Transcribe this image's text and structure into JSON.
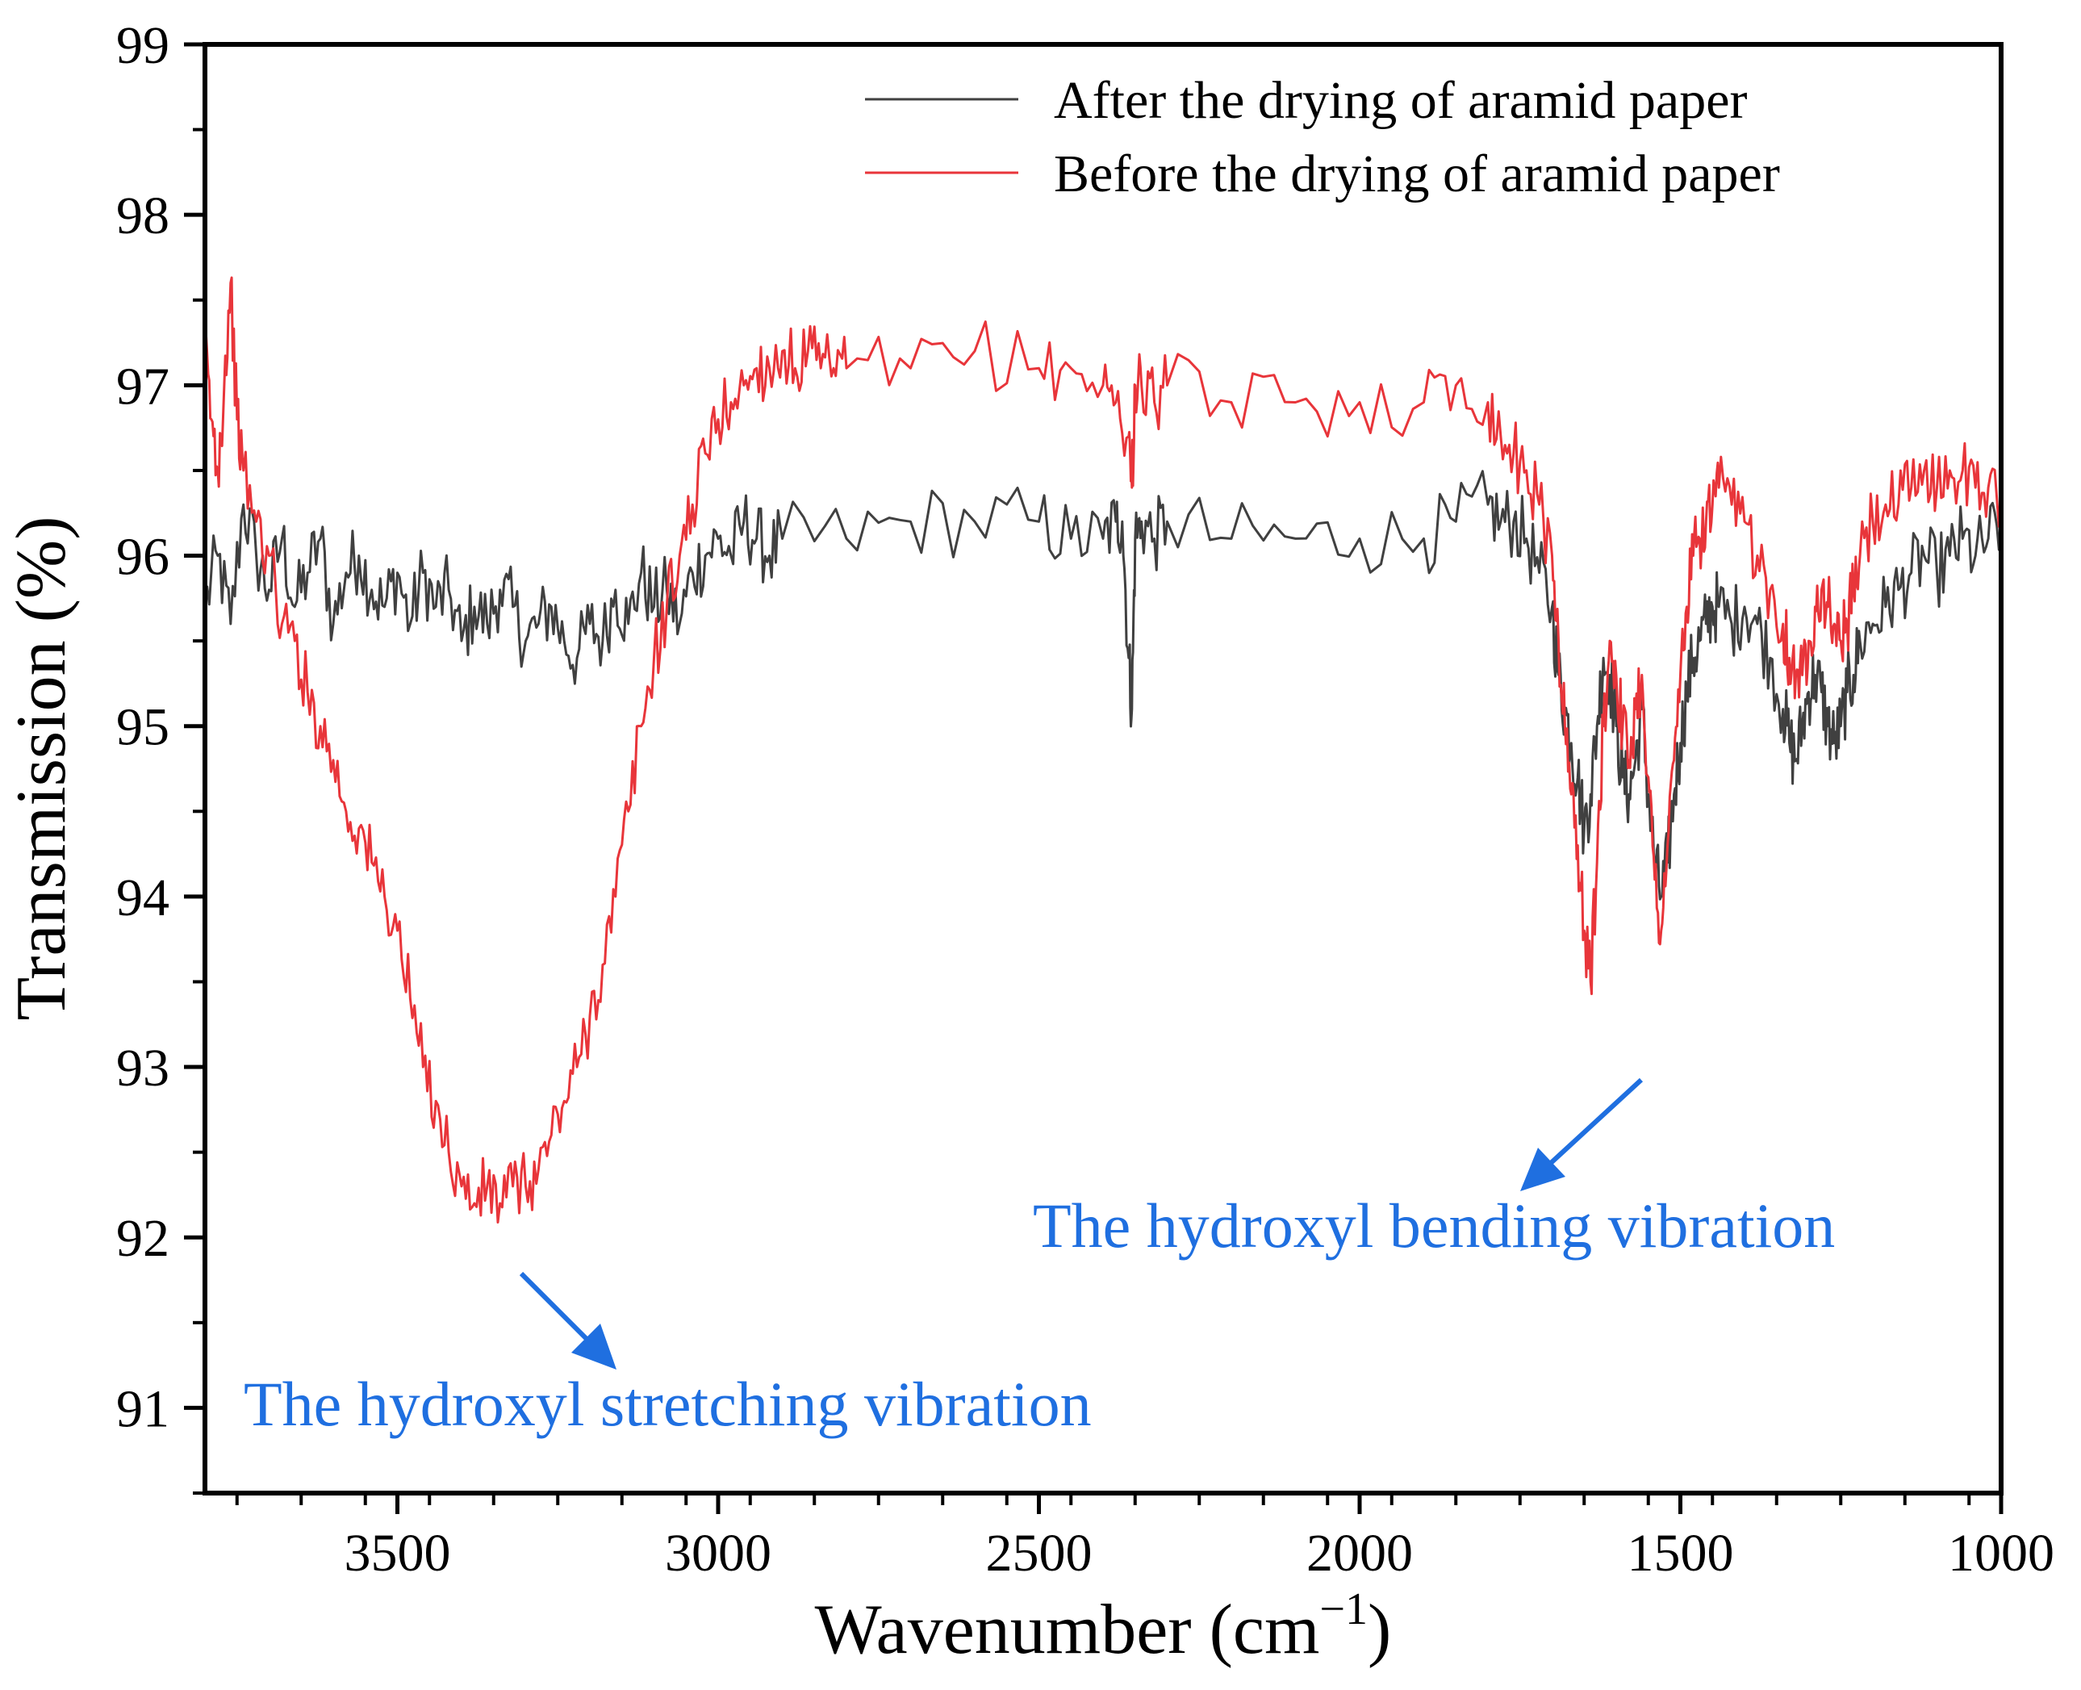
{
  "chart_data": {
    "type": "line",
    "xlabel": "Wavenumber (cm",
    "xlabel_sup": "−1",
    "xlabel_close": ")",
    "ylabel": "Transmission (%)",
    "xlim": [
      3800,
      1000
    ],
    "ylim": [
      90.5,
      99
    ],
    "x_ticks": [
      3500,
      3000,
      2500,
      2000,
      1500,
      1000
    ],
    "y_ticks": [
      91,
      92,
      93,
      94,
      95,
      96,
      97,
      98,
      99
    ],
    "x_tick_labels": [
      "3500",
      "3000",
      "2500",
      "2000",
      "1500",
      "1000"
    ],
    "y_tick_labels": [
      "91",
      "92",
      "93",
      "94",
      "95",
      "96",
      "97",
      "98",
      "99"
    ],
    "legend_position": "top-right",
    "series": [
      {
        "name": "After the drying of aramid paper",
        "color": "#404040",
        "x": [
          3800,
          3780,
          3760,
          3740,
          3720,
          3700,
          3680,
          3660,
          3640,
          3620,
          3600,
          3580,
          3560,
          3540,
          3520,
          3500,
          3480,
          3460,
          3440,
          3420,
          3400,
          3380,
          3360,
          3340,
          3320,
          3300,
          3280,
          3260,
          3240,
          3220,
          3200,
          3180,
          3160,
          3140,
          3120,
          3100,
          3080,
          3060,
          3040,
          3020,
          3000,
          2980,
          2960,
          2940,
          2920,
          2900,
          2800,
          2700,
          2600,
          2500,
          2450,
          2400,
          2380,
          2370,
          2360,
          2355,
          2350,
          2340,
          2320,
          2300,
          2200,
          2100,
          2000,
          1900,
          1850,
          1800,
          1780,
          1760,
          1740,
          1720,
          1700,
          1690,
          1680,
          1670,
          1660,
          1650,
          1640,
          1630,
          1620,
          1610,
          1600,
          1590,
          1580,
          1570,
          1560,
          1550,
          1540,
          1530,
          1520,
          1510,
          1500,
          1490,
          1480,
          1470,
          1460,
          1450,
          1440,
          1420,
          1400,
          1380,
          1360,
          1340,
          1330,
          1320,
          1310,
          1300,
          1290,
          1280,
          1270,
          1260,
          1250,
          1240,
          1230,
          1220,
          1200,
          1180,
          1160,
          1140,
          1120,
          1100,
          1080,
          1060,
          1040,
          1020,
          1000
        ],
        "values": [
          95.7,
          96.0,
          95.6,
          96.3,
          96.0,
          95.8,
          96.1,
          95.7,
          95.9,
          96.1,
          95.6,
          95.9,
          96.0,
          95.8,
          95.7,
          95.9,
          95.6,
          95.9,
          95.7,
          95.8,
          95.5,
          95.7,
          95.6,
          95.8,
          95.7,
          95.5,
          95.6,
          95.7,
          95.5,
          95.4,
          95.6,
          95.5,
          95.8,
          95.6,
          95.9,
          95.7,
          95.8,
          95.6,
          95.9,
          96.0,
          96.1,
          96.0,
          96.2,
          96.1,
          96.0,
          96.1,
          96.1,
          96.2,
          96.2,
          96.2,
          96.1,
          96.1,
          96.2,
          96.2,
          95.4,
          95.1,
          96.1,
          96.2,
          96.1,
          96.2,
          96.1,
          96.1,
          96.1,
          96.1,
          96.2,
          96.3,
          96.2,
          96.2,
          96.1,
          95.9,
          95.7,
          95.3,
          95.1,
          94.9,
          94.7,
          94.4,
          94.6,
          95.0,
          95.4,
          95.3,
          95.0,
          94.7,
          94.6,
          94.8,
          95.1,
          94.6,
          94.2,
          94.0,
          94.2,
          94.6,
          94.9,
          95.2,
          95.4,
          95.5,
          95.6,
          95.7,
          95.7,
          95.6,
          95.7,
          95.6,
          95.4,
          95.1,
          94.9,
          94.8,
          95.0,
          95.2,
          95.3,
          95.2,
          95.0,
          94.9,
          95.0,
          95.2,
          95.3,
          95.5,
          95.6,
          95.7,
          95.8,
          95.9,
          96.0,
          95.9,
          96.0,
          96.1,
          96.0,
          96.1,
          96.2
        ]
      },
      {
        "name": "Before the drying of aramid paper",
        "color": "#e8353a",
        "x": [
          3800,
          3790,
          3780,
          3770,
          3760,
          3750,
          3740,
          3720,
          3700,
          3680,
          3660,
          3640,
          3620,
          3600,
          3580,
          3560,
          3540,
          3520,
          3500,
          3480,
          3460,
          3440,
          3420,
          3400,
          3380,
          3360,
          3340,
          3320,
          3300,
          3280,
          3260,
          3240,
          3220,
          3200,
          3180,
          3160,
          3140,
          3120,
          3100,
          3080,
          3060,
          3040,
          3020,
          3000,
          2980,
          2960,
          2940,
          2920,
          2900,
          2880,
          2860,
          2840,
          2820,
          2800,
          2700,
          2600,
          2500,
          2450,
          2400,
          2380,
          2360,
          2355,
          2350,
          2340,
          2320,
          2300,
          2200,
          2100,
          2000,
          1900,
          1850,
          1800,
          1780,
          1760,
          1740,
          1720,
          1700,
          1690,
          1680,
          1670,
          1660,
          1650,
          1640,
          1630,
          1620,
          1610,
          1600,
          1590,
          1580,
          1570,
          1560,
          1550,
          1540,
          1530,
          1520,
          1510,
          1500,
          1490,
          1480,
          1470,
          1460,
          1450,
          1440,
          1420,
          1400,
          1380,
          1360,
          1340,
          1330,
          1320,
          1310,
          1300,
          1290,
          1280,
          1270,
          1260,
          1250,
          1240,
          1230,
          1220,
          1200,
          1180,
          1160,
          1140,
          1120,
          1100,
          1080,
          1060,
          1040,
          1020,
          1000
        ],
        "values": [
          97.2,
          96.8,
          96.5,
          97.0,
          97.6,
          96.8,
          96.5,
          96.2,
          96.0,
          95.6,
          95.5,
          95.2,
          95.0,
          94.8,
          94.5,
          94.4,
          94.2,
          94.0,
          93.8,
          93.4,
          93.0,
          92.8,
          92.5,
          92.3,
          92.2,
          92.3,
          92.2,
          92.3,
          92.3,
          92.4,
          92.6,
          92.8,
          93.0,
          93.3,
          93.6,
          94.0,
          94.5,
          95.0,
          95.4,
          95.7,
          96.0,
          96.3,
          96.6,
          96.8,
          96.9,
          97.0,
          97.1,
          97.1,
          97.2,
          97.1,
          97.2,
          97.1,
          97.1,
          97.1,
          97.1,
          97.2,
          97.1,
          97.1,
          97.0,
          96.9,
          96.7,
          96.4,
          97.0,
          97.0,
          96.9,
          97.0,
          96.9,
          96.9,
          96.9,
          96.9,
          97.0,
          96.9,
          96.7,
          96.6,
          96.5,
          96.3,
          96.0,
          95.5,
          95.0,
          94.6,
          94.3,
          93.8,
          93.5,
          94.2,
          95.0,
          95.5,
          95.3,
          95.0,
          94.8,
          95.1,
          95.3,
          94.7,
          94.1,
          93.8,
          94.3,
          94.8,
          95.3,
          95.7,
          96.0,
          96.1,
          96.2,
          96.3,
          96.4,
          96.3,
          96.2,
          96.0,
          95.8,
          95.6,
          95.4,
          95.3,
          95.3,
          95.5,
          95.7,
          95.8,
          95.7,
          95.6,
          95.5,
          95.6,
          95.8,
          96.0,
          96.2,
          96.3,
          96.3,
          96.4,
          96.5,
          96.4,
          96.5,
          96.5,
          96.4,
          96.4,
          96.3
        ]
      }
    ],
    "annotations": [
      {
        "text": "The hydroxyl stretching vibration",
        "color": "#1f6fe0"
      },
      {
        "text": "The hydroxyl bending vibration",
        "color": "#1f6fe0"
      }
    ]
  }
}
